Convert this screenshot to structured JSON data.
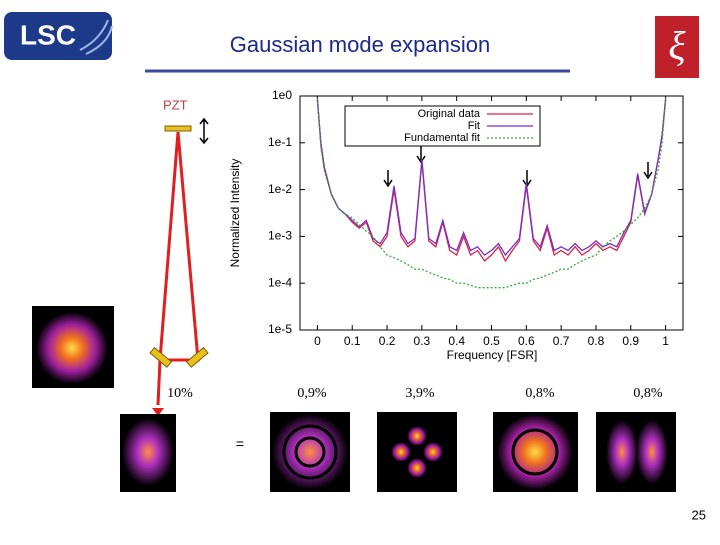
{
  "slide": {
    "logo": "LSC",
    "title": "Gaussian mode expansion",
    "pzt": "PZT",
    "mode_labels": [
      "10%",
      "0,9%",
      "3,9%",
      "0,8%",
      "0,8%"
    ],
    "equals": "=",
    "page_number": "25"
  },
  "chart_data": {
    "type": "line",
    "ylabel": "Normalized Intensity",
    "xlabel": "Frequency [FSR]",
    "log_y": true,
    "legend": "top",
    "xlim": [
      -0.05,
      1.05
    ],
    "xticks": [
      0,
      0.1,
      0.2,
      0.3,
      0.4,
      0.5,
      0.6,
      0.7,
      0.8,
      0.9,
      1
    ],
    "ylim": [
      1e-05,
      1
    ],
    "yticks": [
      {
        "value": 1e-05,
        "label": "1e-5"
      },
      {
        "value": 0.0001,
        "label": "1e-4"
      },
      {
        "value": 0.001,
        "label": "1e-3"
      },
      {
        "value": 0.01,
        "label": "1e-2"
      },
      {
        "value": 0.1,
        "label": "1e-1"
      },
      {
        "value": 1,
        "label": "1e0"
      }
    ],
    "x": [
      0,
      0.01,
      0.02,
      0.04,
      0.06,
      0.08,
      0.1,
      0.12,
      0.14,
      0.16,
      0.18,
      0.2,
      0.22,
      0.24,
      0.26,
      0.28,
      0.3,
      0.32,
      0.34,
      0.36,
      0.38,
      0.4,
      0.42,
      0.44,
      0.46,
      0.48,
      0.5,
      0.52,
      0.54,
      0.56,
      0.58,
      0.6,
      0.62,
      0.64,
      0.66,
      0.68,
      0.7,
      0.72,
      0.74,
      0.76,
      0.78,
      0.8,
      0.82,
      0.84,
      0.86,
      0.88,
      0.9,
      0.92,
      0.94,
      0.96,
      0.98,
      0.99,
      1
    ],
    "series": [
      {
        "name": "Original data",
        "color": "#e0204a",
        "dash": false,
        "values": [
          0.8,
          0.1,
          0.03,
          0.008,
          0.004,
          0.003,
          0.002,
          0.0015,
          0.002,
          0.0008,
          0.0006,
          0.001,
          0.01,
          0.001,
          0.0006,
          0.0008,
          0.04,
          0.0008,
          0.0006,
          0.002,
          0.0005,
          0.0004,
          0.001,
          0.0004,
          0.0005,
          0.0003,
          0.0004,
          0.0006,
          0.0003,
          0.0005,
          0.0008,
          0.012,
          0.0008,
          0.0005,
          0.0015,
          0.0004,
          0.0005,
          0.0004,
          0.0006,
          0.0004,
          0.0005,
          0.0007,
          0.0005,
          0.0006,
          0.0005,
          0.001,
          0.002,
          0.02,
          0.003,
          0.008,
          0.05,
          0.15,
          0.8
        ]
      },
      {
        "name": "Fit",
        "color": "#7a2fc0",
        "dash": false,
        "values": [
          0.9,
          0.09,
          0.028,
          0.008,
          0.004,
          0.003,
          0.0022,
          0.0016,
          0.0022,
          0.0009,
          0.0007,
          0.0012,
          0.012,
          0.0012,
          0.0007,
          0.0009,
          0.045,
          0.0009,
          0.0007,
          0.0022,
          0.0006,
          0.0005,
          0.0012,
          0.0005,
          0.0006,
          0.0004,
          0.0005,
          0.0007,
          0.0004,
          0.0006,
          0.0009,
          0.014,
          0.0009,
          0.0006,
          0.0017,
          0.0005,
          0.0006,
          0.0005,
          0.0007,
          0.0005,
          0.0006,
          0.0008,
          0.0006,
          0.0007,
          0.0006,
          0.0012,
          0.0022,
          0.022,
          0.0032,
          0.008,
          0.05,
          0.14,
          0.9
        ]
      },
      {
        "name": "Fundamental fit",
        "color": "#33aa33",
        "dash": true,
        "values": [
          0.9,
          0.08,
          0.025,
          0.008,
          0.004,
          0.003,
          0.0025,
          0.0018,
          0.0013,
          0.001,
          0.0006,
          0.0004,
          0.00035,
          0.0003,
          0.00025,
          0.0002,
          0.0002,
          0.00017,
          0.00015,
          0.00013,
          0.00012,
          0.0001,
          0.0001,
          9e-05,
          8e-05,
          8e-05,
          8e-05,
          8e-05,
          8e-05,
          9e-05,
          0.0001,
          0.0001,
          0.00012,
          0.00013,
          0.00015,
          0.00017,
          0.0002,
          0.0002,
          0.00025,
          0.0003,
          0.00035,
          0.0004,
          0.0006,
          0.0008,
          0.001,
          0.0013,
          0.0018,
          0.0025,
          0.004,
          0.008,
          0.03,
          0.1,
          0.9
        ]
      }
    ]
  }
}
